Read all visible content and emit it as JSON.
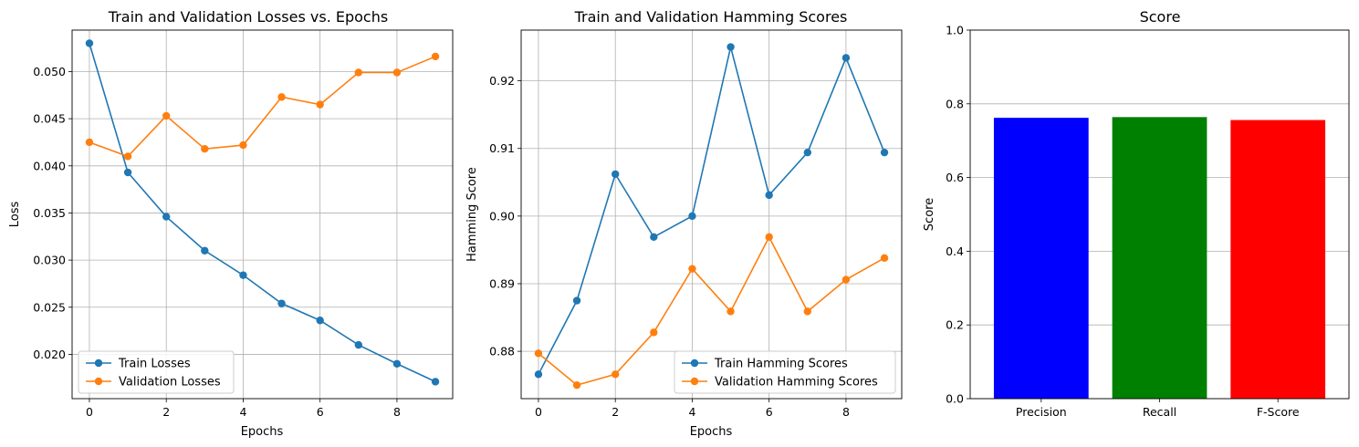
{
  "chart_data": [
    {
      "type": "line",
      "title": "Train and Validation Losses vs. Epochs",
      "xlabel": "Epochs",
      "ylabel": "Loss",
      "x": [
        0,
        1,
        2,
        3,
        4,
        5,
        6,
        7,
        8,
        9
      ],
      "xlim": [
        -0.45,
        9.45
      ],
      "ylim": [
        0.0153,
        0.0544
      ],
      "xticks": [
        0,
        2,
        4,
        6,
        8
      ],
      "yticks": [
        0.02,
        0.025,
        0.03,
        0.035,
        0.04,
        0.045,
        0.05
      ],
      "ytick_labels": [
        "0.020",
        "0.025",
        "0.030",
        "0.035",
        "0.040",
        "0.045",
        "0.050"
      ],
      "grid": true,
      "legend": "lower-left",
      "series": [
        {
          "name": "Train Losses",
          "color": "#1f77b4",
          "values": [
            0.053,
            0.0393,
            0.0346,
            0.031,
            0.0284,
            0.0254,
            0.0236,
            0.021,
            0.019,
            0.0171
          ]
        },
        {
          "name": "Validation Losses",
          "color": "#ff7f0e",
          "values": [
            0.0425,
            0.041,
            0.0453,
            0.0418,
            0.0422,
            0.0473,
            0.0465,
            0.0499,
            0.0499,
            0.0516
          ]
        }
      ]
    },
    {
      "type": "line",
      "title": "Train and Validation Hamming Scores",
      "xlabel": "Epochs",
      "ylabel": "Hamming Score",
      "x": [
        0,
        1,
        2,
        3,
        4,
        5,
        6,
        7,
        8,
        9
      ],
      "xlim": [
        -0.45,
        9.45
      ],
      "ylim": [
        0.873,
        0.9275
      ],
      "xticks": [
        0,
        2,
        4,
        6,
        8
      ],
      "yticks": [
        0.88,
        0.89,
        0.9,
        0.91,
        0.92
      ],
      "ytick_labels": [
        "0.88",
        "0.89",
        "0.90",
        "0.91",
        "0.92"
      ],
      "grid": true,
      "legend": "lower-right",
      "series": [
        {
          "name": "Train Hamming Scores",
          "color": "#1f77b4",
          "values": [
            0.8766,
            0.8875,
            0.9062,
            0.8969,
            0.9,
            0.925,
            0.9031,
            0.9094,
            0.9234,
            0.9094
          ]
        },
        {
          "name": "Validation Hamming Scores",
          "color": "#ff7f0e",
          "values": [
            0.8797,
            0.875,
            0.8766,
            0.8828,
            0.8922,
            0.8859,
            0.8969,
            0.8859,
            0.8906,
            0.8938
          ]
        }
      ]
    },
    {
      "type": "bar",
      "title": "Score",
      "xlabel": "",
      "ylabel": "Score",
      "categories": [
        "Precision",
        "Recall",
        "F-Score"
      ],
      "values": [
        0.762,
        0.764,
        0.756
      ],
      "colors": [
        "#0000ff",
        "#008000",
        "#ff0000"
      ],
      "ylim": [
        0,
        1.0
      ],
      "yticks": [
        0.0,
        0.2,
        0.4,
        0.6,
        0.8,
        1.0
      ],
      "ytick_labels": [
        "0.0",
        "0.2",
        "0.4",
        "0.6",
        "0.8",
        "1.0"
      ],
      "grid": "y"
    }
  ]
}
